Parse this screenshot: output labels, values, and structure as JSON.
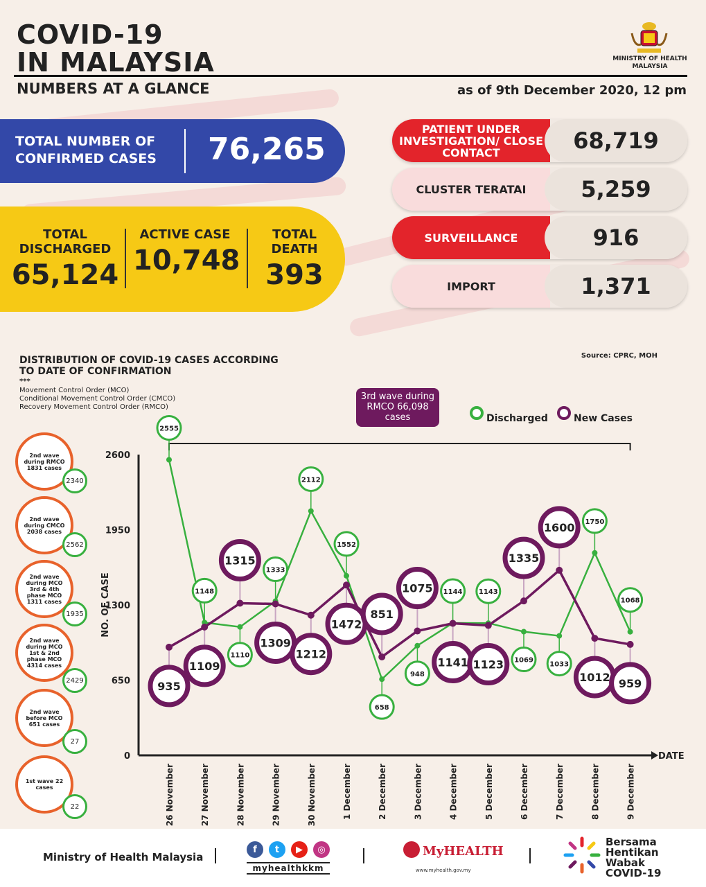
{
  "header": {
    "title_line1": "COVID-19",
    "title_line2": "IN MALAYSIA",
    "subtitle": "NUMBERS AT A GLANCE",
    "as_of": "as of 9th December 2020, 12 pm",
    "ministry": "MINISTRY OF HEALTH MALAYSIA"
  },
  "totals": {
    "confirmed_label": "TOTAL NUMBER OF CONFIRMED CASES",
    "confirmed_value": "76,265",
    "discharged_label": "TOTAL DISCHARGED",
    "discharged_value": "65,124",
    "active_label": "ACTIVE CASE",
    "active_value": "10,748",
    "death_label": "TOTAL DEATH",
    "death_value": "393"
  },
  "categories_panel": [
    {
      "label": "PATIENT UNDER INVESTIGATION/ CLOSE CONTACT",
      "value": "68,719",
      "style": "red"
    },
    {
      "label": "CLUSTER TERATAI",
      "value": "5,259",
      "style": "pink"
    },
    {
      "label": "SURVEILLANCE",
      "value": "916",
      "style": "red"
    },
    {
      "label": "IMPORT",
      "value": "1,371",
      "style": "pink"
    }
  ],
  "chart_section": {
    "title": "DISTRIBUTION OF COVID-19 CASES ACCORDING TO DATE OF CONFIRMATION",
    "stars": "***",
    "notes": [
      "Movement Control Order (MCO)",
      "Conditional Movement Control Order (CMCO)",
      "Recovery Movement Control Order (RMCO)"
    ],
    "source": "Source: CPRC, MOH",
    "badge": "3rd wave during RMCO 66,098 cases",
    "legend_discharged": "Discharged",
    "legend_new": "New Cases",
    "ylabel": "NO. OF CASE",
    "xlabel": "DATE"
  },
  "waves": [
    {
      "label": "2nd wave during RMCO 1831 cases",
      "value": "2340"
    },
    {
      "label": "2nd wave during CMCO 2038 cases",
      "value": "2562"
    },
    {
      "label": "2nd wave during MCO 3rd & 4th phase MCO 1311 cases",
      "value": "1935"
    },
    {
      "label": "2nd wave during MCO 1st & 2nd phase MCO 4314 cases",
      "value": "2429"
    },
    {
      "label": "2nd wave before MCO 651 cases",
      "value": "27"
    },
    {
      "label": "1st wave 22 cases",
      "value": "22"
    }
  ],
  "chart_data": {
    "type": "line",
    "categories": [
      "26 November",
      "27 November",
      "28 November",
      "29 November",
      "30 November",
      "1 December",
      "2 December",
      "3 December",
      "4 December",
      "5 December",
      "6 December",
      "7 December",
      "8 December",
      "9 December"
    ],
    "series": [
      {
        "name": "Discharged",
        "color": "#38b03f",
        "values": [
          2555,
          1148,
          1110,
          1333,
          2112,
          1552,
          658,
          948,
          1144,
          1143,
          1069,
          1033,
          1750,
          1068
        ]
      },
      {
        "name": "New Cases",
        "color": "#6e1a5e",
        "values": [
          935,
          1109,
          1315,
          1309,
          1212,
          1472,
          851,
          1075,
          1141,
          1123,
          1335,
          1600,
          1012,
          959
        ]
      }
    ],
    "ylabel": "NO. OF CASE",
    "xlabel": "DATE",
    "ylim": [
      0,
      2600
    ],
    "yticks": [
      0,
      650,
      1300,
      1950,
      2600
    ]
  },
  "footer": {
    "ministry": "Ministry of Health Malaysia",
    "handle": "myhealthkkm",
    "myhealth": "MyHEALTH",
    "myhealth_url": "www.myhealth.gov.my",
    "campaign": "Bersama Hentikan Wabak COVID-19"
  }
}
